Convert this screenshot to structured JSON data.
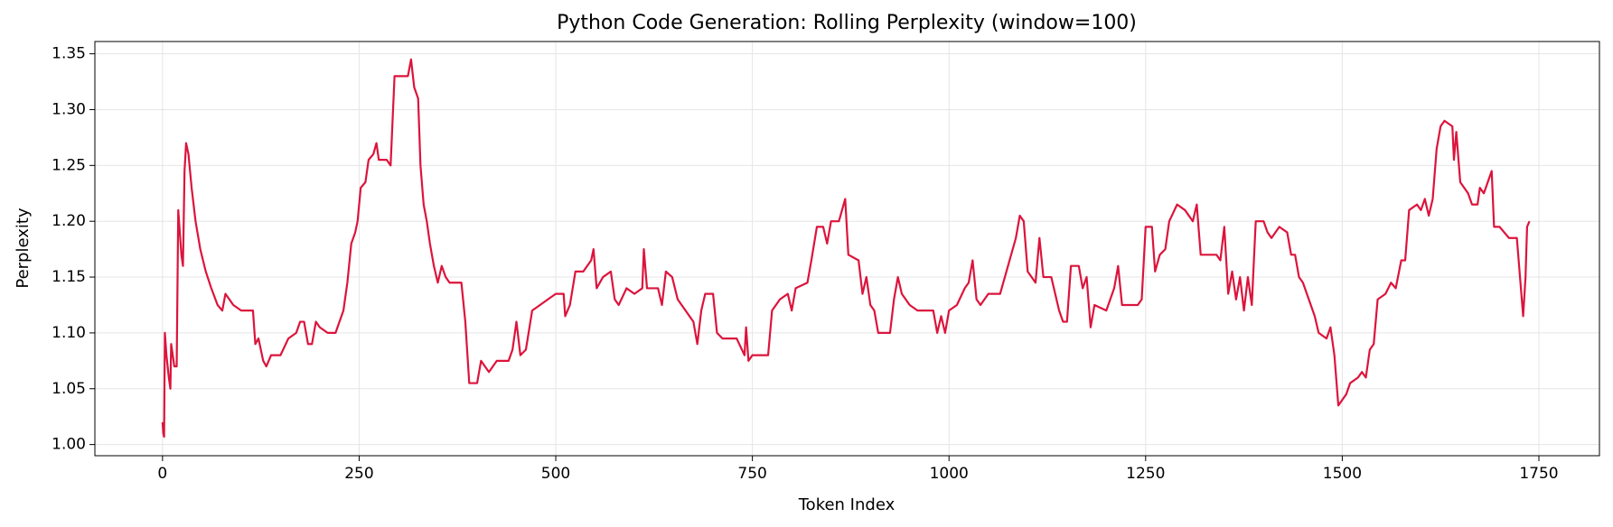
{
  "chart_data": {
    "type": "line",
    "title": "Python Code Generation: Rolling Perplexity (window=100)",
    "xlabel": "Token Index",
    "ylabel": "Perplexity",
    "color": "#dc143c",
    "grid": true,
    "xlim": [
      -86,
      1827
    ],
    "ylim": [
      0.99,
      1.361
    ],
    "xticks": [
      0,
      250,
      500,
      750,
      1000,
      1250,
      1500,
      1750
    ],
    "yticks": [
      {
        "value": 1.0,
        "label": "1.00"
      },
      {
        "value": 1.05,
        "label": "1.05"
      },
      {
        "value": 1.1,
        "label": "1.10"
      },
      {
        "value": 1.15,
        "label": "1.15"
      },
      {
        "value": 1.2,
        "label": "1.20"
      },
      {
        "value": 1.25,
        "label": "1.25"
      },
      {
        "value": 1.3,
        "label": "1.30"
      },
      {
        "value": 1.35,
        "label": "1.35"
      }
    ],
    "x": [
      0,
      1,
      2,
      3,
      5,
      8,
      10,
      11,
      13,
      15,
      18,
      20,
      24,
      26,
      28,
      30,
      33,
      37,
      42,
      48,
      55,
      62,
      70,
      76,
      80,
      85,
      90,
      100,
      110,
      115,
      118,
      122,
      128,
      132,
      138,
      150,
      160,
      170,
      175,
      180,
      185,
      190,
      195,
      200,
      210,
      220,
      225,
      230,
      235,
      240,
      245,
      248,
      252,
      258,
      262,
      268,
      272,
      275,
      285,
      290,
      295,
      305,
      312,
      316,
      320,
      325,
      328,
      332,
      336,
      340,
      345,
      350,
      355,
      360,
      365,
      380,
      385,
      390,
      400,
      405,
      415,
      425,
      440,
      445,
      450,
      455,
      462,
      470,
      480,
      490,
      500,
      510,
      512,
      518,
      525,
      535,
      545,
      548,
      552,
      560,
      570,
      575,
      580,
      590,
      600,
      610,
      612,
      616,
      622,
      630,
      635,
      640,
      648,
      655,
      665,
      675,
      680,
      685,
      690,
      700,
      705,
      712,
      730,
      740,
      742,
      745,
      750,
      770,
      775,
      785,
      795,
      800,
      805,
      820,
      825,
      832,
      840,
      845,
      850,
      860,
      868,
      872,
      885,
      890,
      895,
      900,
      905,
      910,
      925,
      930,
      935,
      940,
      950,
      960,
      980,
      985,
      990,
      995,
      1000,
      1010,
      1020,
      1025,
      1030,
      1035,
      1040,
      1050,
      1065,
      1075,
      1085,
      1090,
      1095,
      1100,
      1110,
      1115,
      1120,
      1130,
      1140,
      1145,
      1150,
      1155,
      1165,
      1170,
      1175,
      1180,
      1185,
      1200,
      1210,
      1215,
      1220,
      1240,
      1245,
      1250,
      1258,
      1262,
      1268,
      1275,
      1280,
      1290,
      1300,
      1310,
      1315,
      1320,
      1340,
      1345,
      1350,
      1355,
      1360,
      1365,
      1370,
      1375,
      1380,
      1385,
      1390,
      1400,
      1405,
      1410,
      1420,
      1430,
      1435,
      1440,
      1445,
      1450,
      1460,
      1465,
      1470,
      1480,
      1485,
      1490,
      1495,
      1500,
      1505,
      1510,
      1520,
      1525,
      1530,
      1535,
      1540,
      1545,
      1555,
      1562,
      1568,
      1575,
      1580,
      1585,
      1595,
      1600,
      1605,
      1610,
      1615,
      1620,
      1625,
      1630,
      1640,
      1642,
      1645,
      1650,
      1660,
      1665,
      1672,
      1675,
      1680,
      1685,
      1690,
      1693,
      1700,
      1712,
      1722,
      1726,
      1730,
      1733,
      1735,
      1738
    ],
    "values": [
      1.02,
      1.01,
      1.007,
      1.1,
      1.08,
      1.06,
      1.05,
      1.09,
      1.08,
      1.07,
      1.07,
      1.21,
      1.17,
      1.16,
      1.245,
      1.27,
      1.26,
      1.23,
      1.2,
      1.175,
      1.155,
      1.14,
      1.125,
      1.12,
      1.135,
      1.13,
      1.125,
      1.12,
      1.12,
      1.12,
      1.09,
      1.095,
      1.075,
      1.07,
      1.08,
      1.08,
      1.095,
      1.1,
      1.11,
      1.11,
      1.09,
      1.09,
      1.11,
      1.105,
      1.1,
      1.1,
      1.11,
      1.12,
      1.145,
      1.18,
      1.19,
      1.2,
      1.23,
      1.235,
      1.255,
      1.26,
      1.27,
      1.255,
      1.255,
      1.25,
      1.33,
      1.33,
      1.33,
      1.345,
      1.32,
      1.31,
      1.25,
      1.215,
      1.2,
      1.18,
      1.16,
      1.145,
      1.16,
      1.15,
      1.145,
      1.145,
      1.11,
      1.055,
      1.055,
      1.075,
      1.065,
      1.075,
      1.075,
      1.085,
      1.11,
      1.08,
      1.085,
      1.12,
      1.125,
      1.13,
      1.135,
      1.135,
      1.115,
      1.125,
      1.155,
      1.155,
      1.165,
      1.175,
      1.14,
      1.15,
      1.155,
      1.13,
      1.125,
      1.14,
      1.135,
      1.14,
      1.175,
      1.14,
      1.14,
      1.14,
      1.125,
      1.155,
      1.15,
      1.13,
      1.12,
      1.11,
      1.09,
      1.12,
      1.135,
      1.135,
      1.1,
      1.095,
      1.095,
      1.08,
      1.105,
      1.075,
      1.08,
      1.08,
      1.12,
      1.13,
      1.135,
      1.12,
      1.14,
      1.145,
      1.165,
      1.195,
      1.195,
      1.18,
      1.2,
      1.2,
      1.22,
      1.17,
      1.165,
      1.135,
      1.15,
      1.125,
      1.12,
      1.1,
      1.1,
      1.13,
      1.15,
      1.135,
      1.125,
      1.12,
      1.12,
      1.1,
      1.115,
      1.1,
      1.12,
      1.125,
      1.14,
      1.145,
      1.165,
      1.13,
      1.125,
      1.135,
      1.135,
      1.16,
      1.185,
      1.205,
      1.2,
      1.155,
      1.145,
      1.185,
      1.15,
      1.15,
      1.12,
      1.11,
      1.11,
      1.16,
      1.16,
      1.14,
      1.15,
      1.105,
      1.125,
      1.12,
      1.14,
      1.16,
      1.125,
      1.125,
      1.13,
      1.195,
      1.195,
      1.155,
      1.17,
      1.175,
      1.2,
      1.215,
      1.21,
      1.2,
      1.215,
      1.17,
      1.17,
      1.165,
      1.195,
      1.135,
      1.155,
      1.13,
      1.15,
      1.12,
      1.15,
      1.125,
      1.2,
      1.2,
      1.19,
      1.185,
      1.195,
      1.19,
      1.17,
      1.17,
      1.15,
      1.145,
      1.125,
      1.115,
      1.1,
      1.095,
      1.105,
      1.08,
      1.035,
      1.04,
      1.045,
      1.055,
      1.06,
      1.065,
      1.06,
      1.085,
      1.09,
      1.13,
      1.135,
      1.145,
      1.14,
      1.165,
      1.165,
      1.21,
      1.215,
      1.21,
      1.22,
      1.205,
      1.22,
      1.265,
      1.285,
      1.29,
      1.285,
      1.255,
      1.28,
      1.235,
      1.225,
      1.215,
      1.215,
      1.23,
      1.225,
      1.235,
      1.245,
      1.195,
      1.195,
      1.185,
      1.185,
      1.15,
      1.115,
      1.15,
      1.195,
      1.2
    ]
  }
}
